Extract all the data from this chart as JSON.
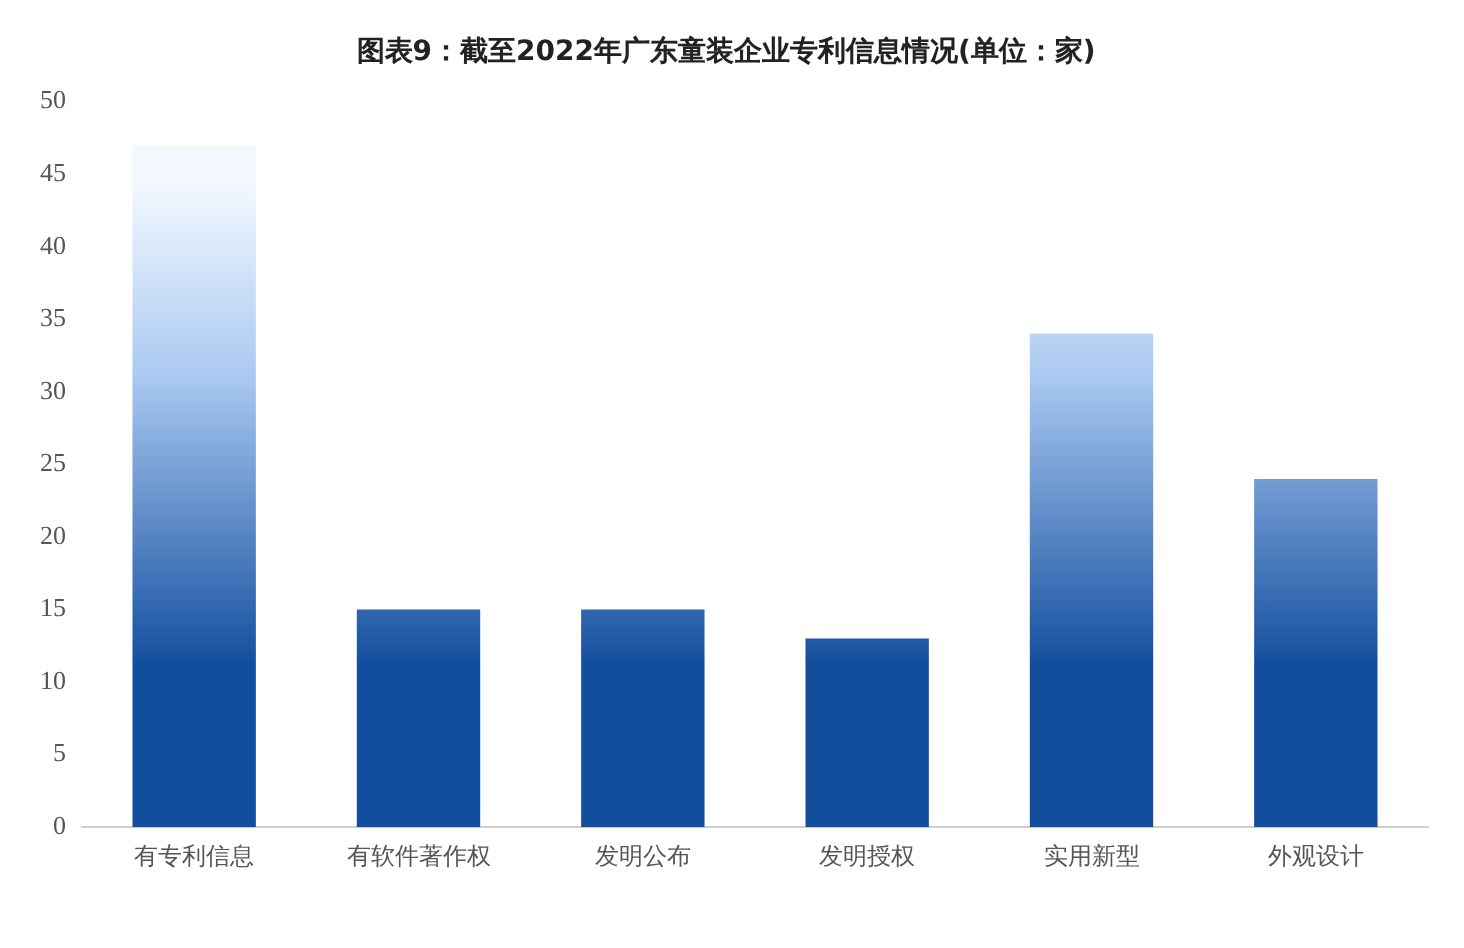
{
  "chart_data": {
    "type": "bar",
    "title": "图表9：截至2022年广东童装企业专利信息情况(单位：家)",
    "categories": [
      "有专利信息",
      "有软件著作权",
      "发明公布",
      "发明授权",
      "实用新型",
      "外观设计"
    ],
    "values": [
      47,
      15,
      15,
      13,
      34,
      24
    ],
    "color": "#134e9e",
    "ylim": [
      0,
      50
    ],
    "yticks": [
      0,
      5,
      10,
      15,
      20,
      25,
      30,
      35,
      40,
      45,
      50
    ],
    "grid": false,
    "legend": false
  }
}
